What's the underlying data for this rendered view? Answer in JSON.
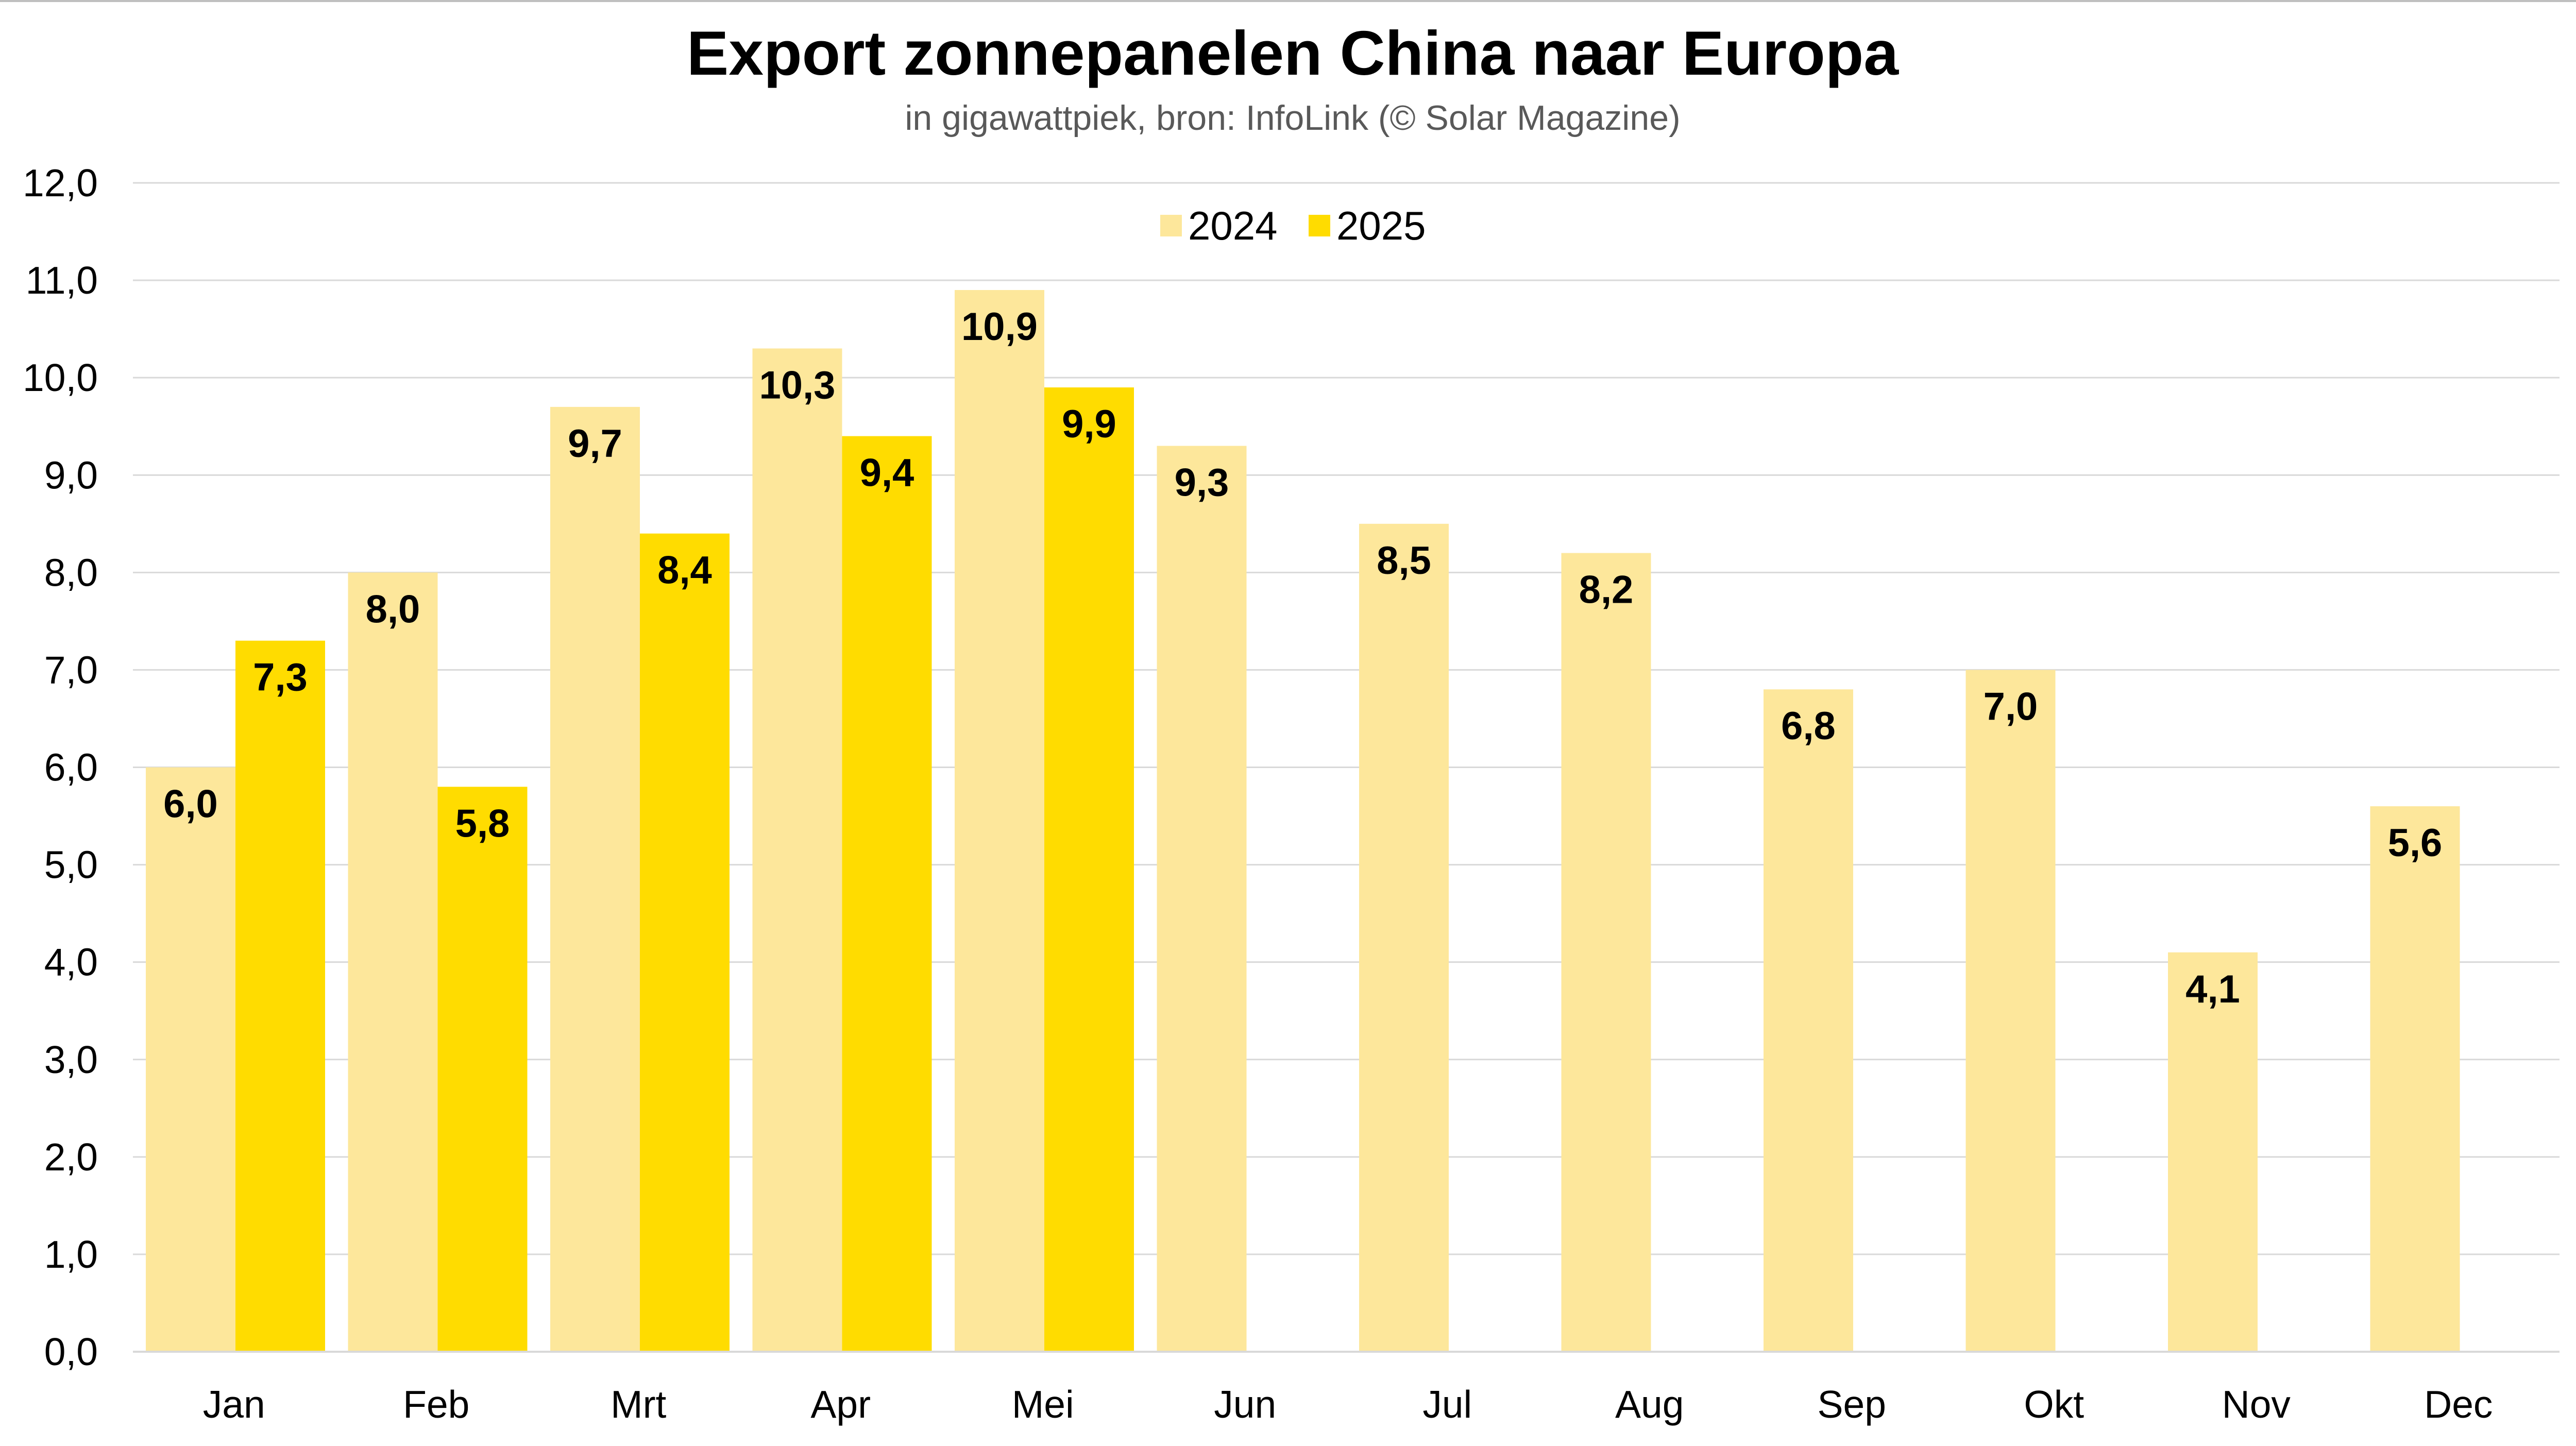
{
  "chart_data": {
    "type": "bar",
    "title": "Export zonnepanelen China naar Europa",
    "subtitle": "in gigawattpiek, bron: InfoLink (© Solar Magazine)",
    "xlabel": "",
    "ylabel": "",
    "categories": [
      "Jan",
      "Feb",
      "Mrt",
      "Apr",
      "Mei",
      "Jun",
      "Jul",
      "Aug",
      "Sep",
      "Okt",
      "Nov",
      "Dec"
    ],
    "series": [
      {
        "name": "2024",
        "color": "#FDE79B",
        "values": [
          6.0,
          8.0,
          9.7,
          10.3,
          10.9,
          9.3,
          8.5,
          8.2,
          6.8,
          7.0,
          4.1,
          5.6
        ],
        "labels": [
          "6,0",
          "8,0",
          "9,7",
          "10,3",
          "10,9",
          "9,3",
          "8,5",
          "8,2",
          "6,8",
          "7,0",
          "4,1",
          "5,6"
        ]
      },
      {
        "name": "2025",
        "color": "#FFDC00",
        "values": [
          7.3,
          5.8,
          8.4,
          9.4,
          9.9,
          null,
          null,
          null,
          null,
          null,
          null,
          null
        ],
        "labels": [
          "7,3",
          "5,8",
          "8,4",
          "9,4",
          "9,9",
          "",
          "",
          "",
          "",
          "",
          "",
          ""
        ]
      }
    ],
    "ylim": [
      0,
      12
    ],
    "yticks": [
      0,
      1,
      2,
      3,
      4,
      5,
      6,
      7,
      8,
      9,
      10,
      11,
      12
    ],
    "ytick_labels": [
      "0,0",
      "1,0",
      "2,0",
      "3,0",
      "4,0",
      "5,0",
      "6,0",
      "7,0",
      "8,0",
      "9,0",
      "10,0",
      "11,0",
      "12,0"
    ],
    "grid": true,
    "gridline_color": "#D9D9D9",
    "legend": "top-center"
  }
}
